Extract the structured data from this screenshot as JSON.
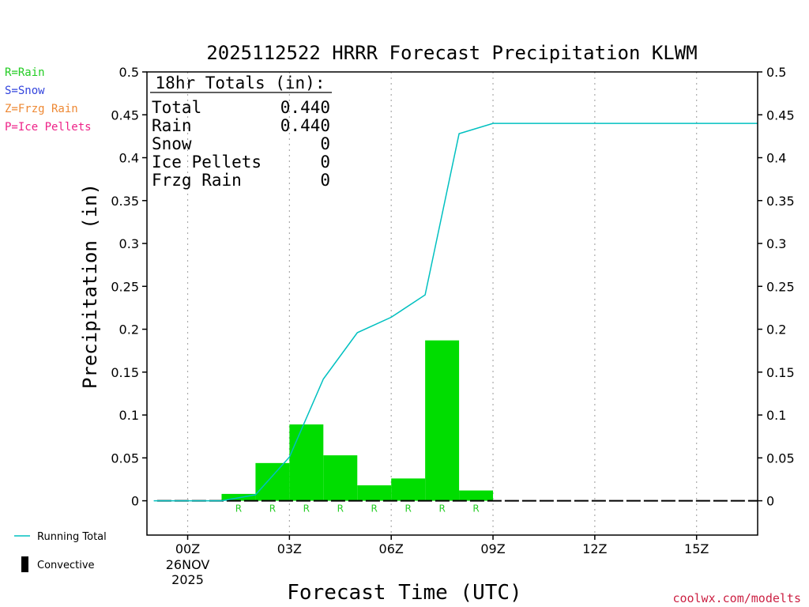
{
  "chart_data": {
    "type": "bar",
    "title": "2025112522 HRRR Forecast Precipitation KLWM",
    "xlabel": "Forecast Time (UTC)",
    "ylabel": "Precipitation (in)",
    "ylim": [
      -0.04,
      0.5
    ],
    "xlim": [
      -1.2,
      16.8
    ],
    "y_ticks": [
      0,
      0.05,
      0.1,
      0.15,
      0.2,
      0.25,
      0.3,
      0.35,
      0.4,
      0.45,
      0.5
    ],
    "y_tick_labels": [
      "0",
      "0.05",
      "0.1",
      "0.15",
      "0.2",
      "0.25",
      "0.3",
      "0.35",
      "0.4",
      "0.45",
      "0.5"
    ],
    "x_ticks": [
      {
        "hour": 0,
        "label": "00Z"
      },
      {
        "hour": 3,
        "label": "03Z"
      },
      {
        "hour": 6,
        "label": "06Z"
      },
      {
        "hour": 9,
        "label": "09Z"
      },
      {
        "hour": 12,
        "label": "12Z"
      },
      {
        "hour": 15,
        "label": "15Z"
      }
    ],
    "date_label": [
      "26NOV",
      "2025"
    ],
    "grid": "vertical-dotted",
    "hourly_precip": {
      "hours": [
        1,
        2,
        3,
        4,
        5,
        6,
        7,
        8,
        9,
        10,
        11,
        12,
        13,
        14,
        15,
        16
      ],
      "values": [
        0,
        0.008,
        0.044,
        0.089,
        0.053,
        0.018,
        0.026,
        0.187,
        0.012,
        0,
        0,
        0,
        0,
        0,
        0,
        0
      ],
      "types": [
        "",
        "R",
        "R",
        "R",
        "R",
        "R",
        "R",
        "R",
        "R",
        "",
        "",
        "",
        "",
        "",
        "",
        ""
      ],
      "color": "#00dd00"
    },
    "running_total": {
      "name": "Running Total",
      "x": [
        -1,
        1,
        2,
        3,
        4,
        5,
        6,
        7,
        8,
        9,
        10,
        11,
        12,
        13,
        14,
        15,
        16,
        16.8
      ],
      "y": [
        0,
        0,
        0.007,
        0.051,
        0.142,
        0.196,
        0.214,
        0.24,
        0.428,
        0.44,
        0.44,
        0.44,
        0.44,
        0.44,
        0.44,
        0.44,
        0.44,
        0.44
      ],
      "color": "#00c0c0"
    },
    "totals_box": {
      "header": "18hr Totals (in):",
      "rows": [
        {
          "label": "Total",
          "value": "0.440"
        },
        {
          "label": "Rain",
          "value": "0.440"
        },
        {
          "label": "Snow",
          "value": "0"
        },
        {
          "label": "Ice Pellets",
          "value": "0"
        },
        {
          "label": "Frzg Rain",
          "value": "0"
        }
      ]
    },
    "ptype_legend": [
      {
        "text": "R=Rain",
        "color": "#22cc22"
      },
      {
        "text": "S=Snow",
        "color": "#3344dd"
      },
      {
        "text": "Z=Frzg Rain",
        "color": "#ee8833"
      },
      {
        "text": "P=Ice Pellets",
        "color": "#ee2288"
      }
    ],
    "series_legend": [
      {
        "text": "Running Total",
        "kind": "line",
        "color": "#00c0c0"
      },
      {
        "text": "Convective",
        "kind": "bar",
        "color": "#000000"
      }
    ],
    "watermark": "coolwx.com/modelts"
  }
}
